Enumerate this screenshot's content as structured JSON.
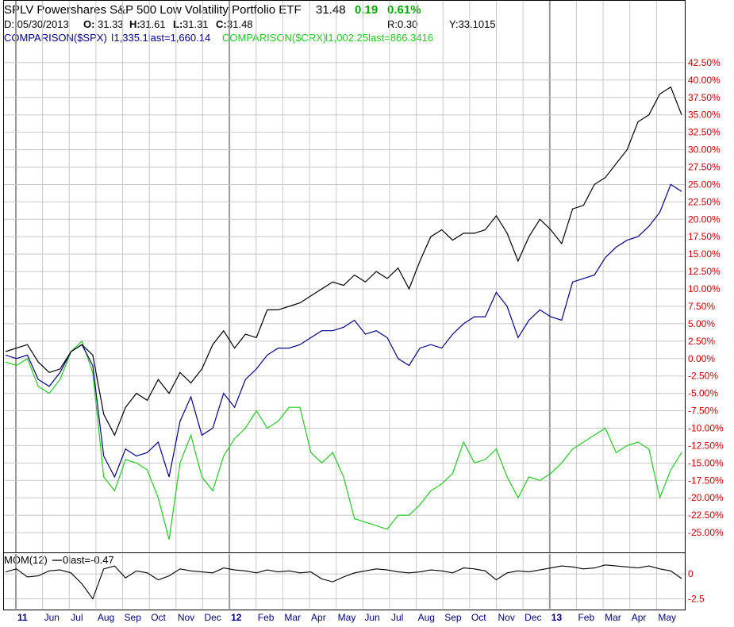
{
  "header": {
    "title": "SPLV Powershares S&P 500 Low Volatility Portfolio ETF",
    "last": "31.48",
    "change": "0.19",
    "change_pct": "0.61%",
    "date": "D: 05/30/2013",
    "open_label": "O:",
    "open": "31.33",
    "high_label": "H:",
    "high": "31.61",
    "low_label": "L:",
    "low": "31.31",
    "close_label": "C:",
    "close": "31.48",
    "r": "R:0.30",
    "y": "Y:33.1015"
  },
  "legend": {
    "spx": "COMPARISON($SPX)",
    "spx_values": "1,335.1last=1,660.14",
    "crx": "COMPARISON($CRX)",
    "crx_values": "1,002.25last=866.3416",
    "mom": "MOM(12)",
    "mom_values": "0last=-0.47"
  },
  "colors": {
    "splv": "#000000",
    "spx": "#00008b",
    "crx": "#22cc22",
    "grid": "#c8c8c8",
    "axis_label": "#cc0000",
    "month_label": "#000080",
    "up": "#00aa00"
  },
  "chart_data": [
    {
      "type": "line",
      "title": "SPLV Powershares S&P 500 Low Volatility Portfolio ETF",
      "ylabel": "",
      "y_tick_labels": [
        "42.50%",
        "40.00%",
        "37.50%",
        "35.00%",
        "32.50%",
        "30.00%",
        "27.50%",
        "25.00%",
        "22.50%",
        "20.00%",
        "17.50%",
        "15.00%",
        "12.50%",
        "10.00%",
        "7.50%",
        "5.00%",
        "2.50%",
        "0.00%",
        "-2.50%",
        "-5.00%",
        "-7.50%",
        "-10.00%",
        "-12.50%",
        "-15.00%",
        "-17.50%",
        "-20.00%",
        "-22.50%",
        "-25.00%"
      ],
      "ylim": [
        -27.5,
        45
      ],
      "x_tick_labels": [
        "11",
        "Jun",
        "Jul",
        "Aug",
        "Sep",
        "Oct",
        "Nov",
        "Dec",
        "12",
        "Feb",
        "Mar",
        "Apr",
        "May",
        "Jun",
        "Jul",
        "Aug",
        "Sep",
        "Oct",
        "Nov",
        "Dec",
        "13",
        "Feb",
        "Mar",
        "Apr",
        "May"
      ],
      "x_tick_bold": [
        "11",
        "12",
        "13"
      ],
      "grid": true,
      "series": [
        {
          "name": "SPLV",
          "values": [
            1.0,
            1.5,
            2.0,
            -0.5,
            -2.0,
            -1.5,
            1.0,
            2.0,
            0.5,
            -8.0,
            -11.0,
            -7.0,
            -5.0,
            -6.0,
            -3.0,
            -5.0,
            -2.0,
            -3.5,
            -1.5,
            2.0,
            4.0,
            1.5,
            3.5,
            3.0,
            7.0,
            7.0,
            7.5,
            8.0,
            9.0,
            10.0,
            11.0,
            10.5,
            12.0,
            11.0,
            12.5,
            11.5,
            13.0,
            10.0,
            14.0,
            17.5,
            18.5,
            17.0,
            18.0,
            18.0,
            18.5,
            20.5,
            18.0,
            14.0,
            17.5,
            20.0,
            18.5,
            16.5,
            21.5,
            22.0,
            25.0,
            26.0,
            28.0,
            30.0,
            34.0,
            35.0,
            38.0,
            39.0,
            35.0
          ]
        },
        {
          "name": "$SPX",
          "values": [
            0.5,
            0.0,
            0.5,
            -3.0,
            -4.0,
            -2.0,
            1.0,
            2.0,
            -1.0,
            -14.0,
            -17.0,
            -13.0,
            -14.0,
            -13.5,
            -12.0,
            -17.0,
            -9.0,
            -5.5,
            -11.0,
            -10.0,
            -5.0,
            -7.0,
            -3.0,
            -1.5,
            0.5,
            1.5,
            1.5,
            2.0,
            3.0,
            4.0,
            4.0,
            4.5,
            5.5,
            3.5,
            4.0,
            3.0,
            0.0,
            -1.0,
            1.5,
            2.0,
            1.5,
            3.5,
            5.0,
            6.0,
            6.0,
            9.5,
            7.5,
            3.0,
            5.5,
            7.0,
            6.0,
            5.5,
            11.0,
            11.5,
            12.0,
            14.5,
            16.0,
            17.0,
            17.5,
            19.0,
            21.0,
            25.0,
            24.0
          ]
        },
        {
          "name": "$CRX",
          "values": [
            -0.5,
            -1.0,
            0.0,
            -4.0,
            -5.0,
            -3.0,
            1.0,
            2.5,
            -2.0,
            -17.0,
            -19.0,
            -14.5,
            -15.0,
            -16.0,
            -20.0,
            -26.0,
            -15.0,
            -11.0,
            -17.0,
            -19.0,
            -14.0,
            -11.5,
            -10.0,
            -7.5,
            -10.0,
            -9.0,
            -7.0,
            -7.0,
            -13.5,
            -15.0,
            -13.5,
            -17.0,
            -23.0,
            -23.5,
            -24.0,
            -24.5,
            -22.5,
            -22.5,
            -21.0,
            -19.0,
            -18.0,
            -16.5,
            -12.0,
            -15.0,
            -14.5,
            -13.0,
            -17.0,
            -20.0,
            -17.0,
            -17.5,
            -16.5,
            -15.0,
            -13.0,
            -12.0,
            -11.0,
            -10.0,
            -13.5,
            -12.5,
            -12.0,
            -13.0,
            -20.0,
            -16.0,
            -13.5
          ]
        }
      ]
    },
    {
      "type": "line",
      "title": "MOM(12)",
      "y_tick_labels": [
        "0",
        "-2.5"
      ],
      "ylim": [
        -3.5,
        2.0
      ],
      "grid": true,
      "series": [
        {
          "name": "MOM(12)",
          "values": [
            0.2,
            0.5,
            -0.3,
            -0.2,
            0.3,
            0.4,
            0.1,
            -1.0,
            -2.5,
            0.5,
            0.8,
            -0.4,
            0.3,
            0.1,
            -0.6,
            -0.2,
            0.5,
            0.3,
            0.2,
            0.1,
            0.6,
            0.4,
            0.3,
            0.1,
            0.4,
            0.2,
            0.3,
            0.1,
            0.2,
            -0.5,
            -0.8,
            -0.3,
            0.1,
            0.3,
            0.5,
            0.4,
            0.2,
            0.1,
            0.2,
            0.4,
            0.3,
            0.1,
            0.6,
            0.5,
            0.3,
            -0.6,
            0.1,
            0.3,
            0.2,
            0.4,
            0.6,
            0.8,
            0.7,
            0.5,
            0.6,
            0.9,
            0.8,
            0.7,
            0.6,
            0.8,
            0.5,
            0.3,
            -0.47
          ]
        }
      ]
    }
  ]
}
